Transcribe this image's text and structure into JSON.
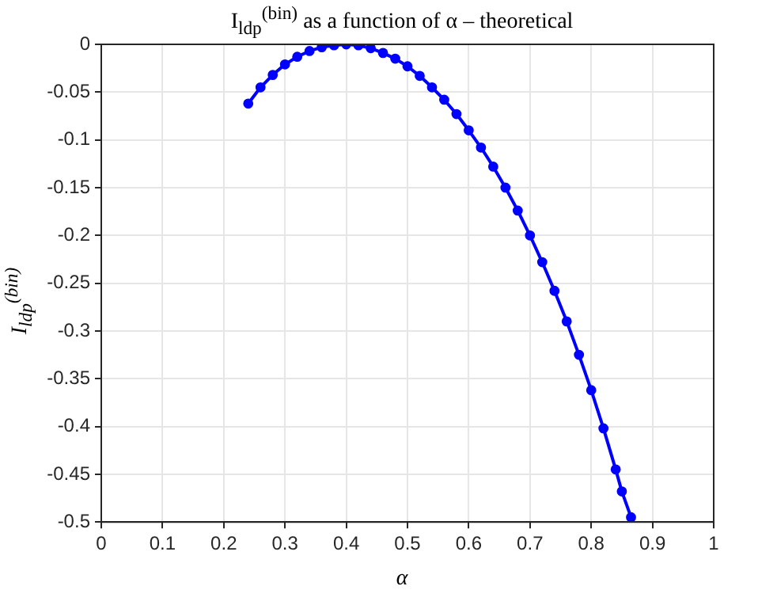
{
  "chart_data": {
    "type": "line",
    "title": "I$_{ldp}$$^{(bin)}$ as a function of α – theoretical",
    "xlabel": "α",
    "ylabel": "I$_{ldp}$$^{(bin)}$",
    "x": [
      0.24,
      0.26,
      0.28,
      0.3,
      0.32,
      0.34,
      0.36,
      0.38,
      0.4,
      0.42,
      0.44,
      0.46,
      0.48,
      0.5,
      0.52,
      0.54,
      0.56,
      0.58,
      0.6,
      0.62,
      0.64,
      0.66,
      0.68,
      0.7,
      0.72,
      0.74,
      0.76,
      0.78,
      0.8,
      0.82,
      0.84,
      0.85,
      0.865
    ],
    "series": [
      {
        "color": "#0000ff",
        "values": [
          -0.062,
          -0.045,
          -0.032,
          -0.021,
          -0.013,
          -0.007,
          -0.003,
          -0.001,
          0,
          -0.001,
          -0.004,
          -0.009,
          -0.015,
          -0.023,
          -0.033,
          -0.045,
          -0.058,
          -0.073,
          -0.09,
          -0.108,
          -0.128,
          -0.15,
          -0.174,
          -0.2,
          -0.228,
          -0.258,
          -0.29,
          -0.325,
          -0.362,
          -0.402,
          -0.445,
          -0.468,
          -0.495
        ]
      }
    ],
    "xlim": [
      0,
      1
    ],
    "xticks": [
      0,
      0.1,
      0.2,
      0.3,
      0.4,
      0.5,
      0.6,
      0.7,
      0.8,
      0.9,
      1
    ],
    "ylim": [
      -0.5,
      0
    ],
    "yticks": [
      -0.5,
      -0.45,
      -0.4,
      -0.35,
      -0.3,
      -0.25,
      -0.2,
      -0.15,
      -0.1,
      -0.05,
      0
    ],
    "grid": true,
    "legend": false,
    "marker": "circle",
    "line_style": "solid"
  }
}
